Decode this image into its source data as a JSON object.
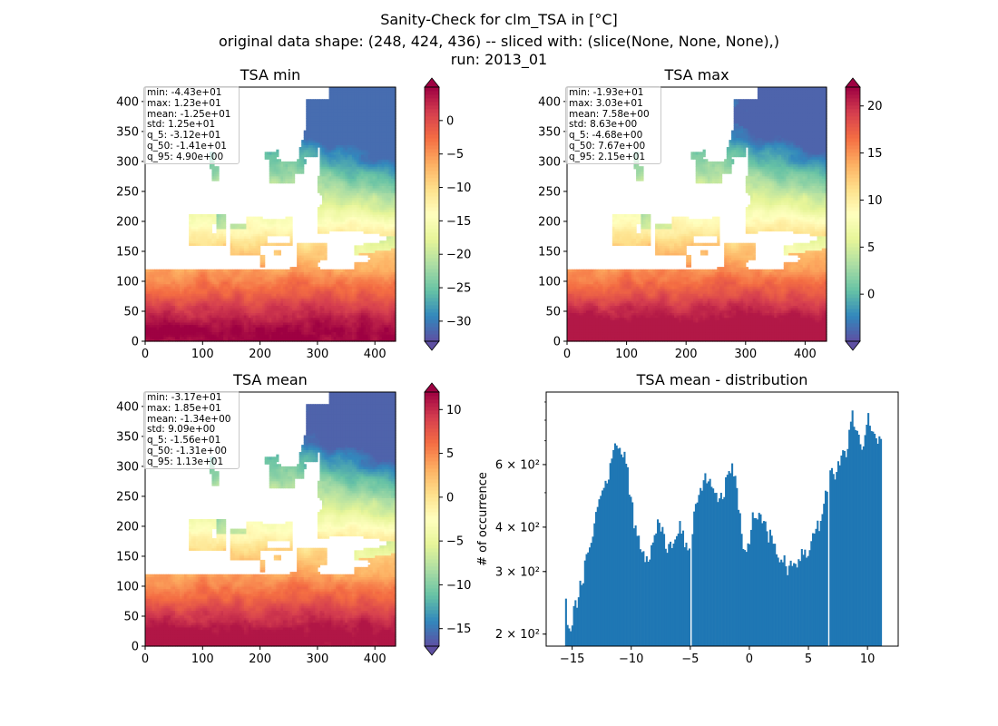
{
  "figure": {
    "title_line1": "Sanity-Check for clm_TSA in [°C]",
    "title_line2": "original data shape: (248, 424, 436) -- sliced with: (slice(None, None, None),)",
    "title_line3": "run: 2013_01"
  },
  "colormap": "Spectral_r",
  "panels": [
    {
      "id": "tsa-min",
      "title": "TSA min",
      "type": "heatmap",
      "x_ticks": [
        "0",
        "100",
        "200",
        "300",
        "400"
      ],
      "y_ticks": [
        "0",
        "50",
        "100",
        "150",
        "200",
        "250",
        "300",
        "350",
        "400"
      ],
      "xlim": [
        0,
        436
      ],
      "ylim": [
        0,
        424
      ],
      "colorbar": {
        "range": [
          -33,
          5
        ],
        "ticks": [
          "0",
          "−5",
          "−10",
          "−15",
          "−20",
          "−25",
          "−30"
        ],
        "tick_values": [
          0,
          -5,
          -10,
          -15,
          -20,
          -25,
          -30
        ],
        "extend": "both"
      },
      "stats": [
        "min: -4.43e+01",
        "max: 1.23e+01",
        "mean: -1.25e+01",
        "std: 1.25e+01",
        "q_5: -3.12e+01",
        "q_50: -1.41e+01",
        "q_95: 4.90e+00"
      ]
    },
    {
      "id": "tsa-max",
      "title": "TSA max",
      "type": "heatmap",
      "x_ticks": [
        "0",
        "100",
        "200",
        "300",
        "400"
      ],
      "y_ticks": [
        "0",
        "50",
        "100",
        "150",
        "200",
        "250",
        "300",
        "350",
        "400"
      ],
      "xlim": [
        0,
        436
      ],
      "ylim": [
        0,
        424
      ],
      "colorbar": {
        "range": [
          -5,
          22
        ],
        "ticks": [
          "20",
          "15",
          "10",
          "5",
          "0"
        ],
        "tick_values": [
          20,
          15,
          10,
          5,
          0
        ],
        "extend": "both"
      },
      "stats": [
        "min: -1.93e+01",
        "max: 3.03e+01",
        "mean: 7.58e+00",
        "std: 8.63e+00",
        "q_5: -4.68e+00",
        "q_50: 7.67e+00",
        "q_95: 2.15e+01"
      ]
    },
    {
      "id": "tsa-mean",
      "title": "TSA mean",
      "type": "heatmap",
      "x_ticks": [
        "0",
        "100",
        "200",
        "300",
        "400"
      ],
      "y_ticks": [
        "0",
        "50",
        "100",
        "150",
        "200",
        "250",
        "300",
        "350",
        "400"
      ],
      "xlim": [
        0,
        436
      ],
      "ylim": [
        0,
        424
      ],
      "colorbar": {
        "range": [
          -17,
          12
        ],
        "ticks": [
          "10",
          "5",
          "0",
          "−5",
          "−10",
          "−15"
        ],
        "tick_values": [
          10,
          5,
          0,
          -5,
          -10,
          -15
        ],
        "extend": "both"
      },
      "stats": [
        "min: -3.17e+01",
        "max: 1.85e+01",
        "mean: -1.34e+00",
        "std: 9.09e+00",
        "q_5: -1.56e+01",
        "q_50: -1.31e+00",
        "q_95: 1.13e+01"
      ]
    }
  ],
  "histogram": {
    "title": "TSA mean - distribution",
    "ylabel": "# of occurrence",
    "type": "bar",
    "y_scale": "log",
    "xlim": [
      -17.2,
      12.6
    ],
    "ylim": [
      185,
      960
    ],
    "x_ticks": [
      "−15",
      "−10",
      "−5",
      "0",
      "5",
      "10"
    ],
    "x_tick_values": [
      -15,
      -10,
      -5,
      0,
      5,
      10
    ],
    "y_ticks": [
      "2 × 10²",
      "3 × 10²",
      "4 × 10²",
      "6 × 10²"
    ],
    "y_tick_values": [
      200,
      300,
      400,
      600
    ],
    "bar_color": "#1f77b4"
  },
  "chart_data": [
    {
      "type": "bar",
      "title": "TSA mean - distribution",
      "xlabel": "",
      "ylabel": "# of occurrence",
      "y_scale": "log",
      "xlim": [
        -17.2,
        12.6
      ],
      "ylim": [
        185,
        960
      ],
      "bin_range": [
        -15.6,
        11.2
      ],
      "bins": 200,
      "anchor_x": [
        -15.6,
        -15.4,
        -15.0,
        -14.5,
        -14.0,
        -13.5,
        -13.0,
        -12.5,
        -12.0,
        -11.5,
        -11.2,
        -11.0,
        -10.6,
        -10.3,
        -10.0,
        -9.7,
        -9.4,
        -9.0,
        -8.6,
        -8.3,
        -8.0,
        -7.7,
        -7.3,
        -7.0,
        -6.6,
        -6.3,
        -6.0,
        -5.6,
        -5.3,
        -5.0,
        -4.6,
        -4.0,
        -3.5,
        -3.0,
        -2.6,
        -2.2,
        -1.8,
        -1.4,
        -1.0,
        -0.6,
        -0.3,
        0.0,
        0.4,
        0.8,
        1.2,
        1.6,
        2.0,
        2.4,
        2.8,
        3.2,
        3.6,
        4.0,
        4.4,
        4.8,
        5.2,
        5.6,
        6.0,
        6.4,
        6.8,
        7.2,
        7.6,
        8.0,
        8.4,
        8.7,
        9.0,
        9.3,
        9.6,
        9.9,
        10.2,
        10.5,
        10.8,
        11.1
      ],
      "anchor_y": [
        270,
        205,
        220,
        250,
        300,
        360,
        440,
        500,
        560,
        640,
        700,
        680,
        620,
        560,
        460,
        410,
        380,
        350,
        320,
        340,
        380,
        420,
        390,
        360,
        340,
        370,
        400,
        380,
        360,
        330,
        440,
        520,
        560,
        480,
        470,
        500,
        560,
        580,
        480,
        380,
        330,
        360,
        440,
        430,
        400,
        380,
        360,
        340,
        320,
        310,
        330,
        320,
        340,
        330,
        360,
        380,
        420,
        470,
        550,
        560,
        600,
        640,
        700,
        820,
        760,
        700,
        650,
        780,
        800,
        730,
        690,
        700
      ],
      "gaps_at_x": [
        -5.0,
        6.7
      ]
    },
    {
      "type": "heatmap",
      "title": "TSA min",
      "x_range": [
        0,
        436
      ],
      "y_range": [
        0,
        424
      ],
      "color_range": [
        -33,
        5
      ],
      "colormap": "Spectral_r"
    },
    {
      "type": "heatmap",
      "title": "TSA max",
      "x_range": [
        0,
        436
      ],
      "y_range": [
        0,
        424
      ],
      "color_range": [
        -5,
        22
      ],
      "colormap": "Spectral_r"
    },
    {
      "type": "heatmap",
      "title": "TSA mean",
      "x_range": [
        0,
        436
      ],
      "y_range": [
        0,
        424
      ],
      "color_range": [
        -17,
        12
      ],
      "colormap": "Spectral_r"
    }
  ]
}
